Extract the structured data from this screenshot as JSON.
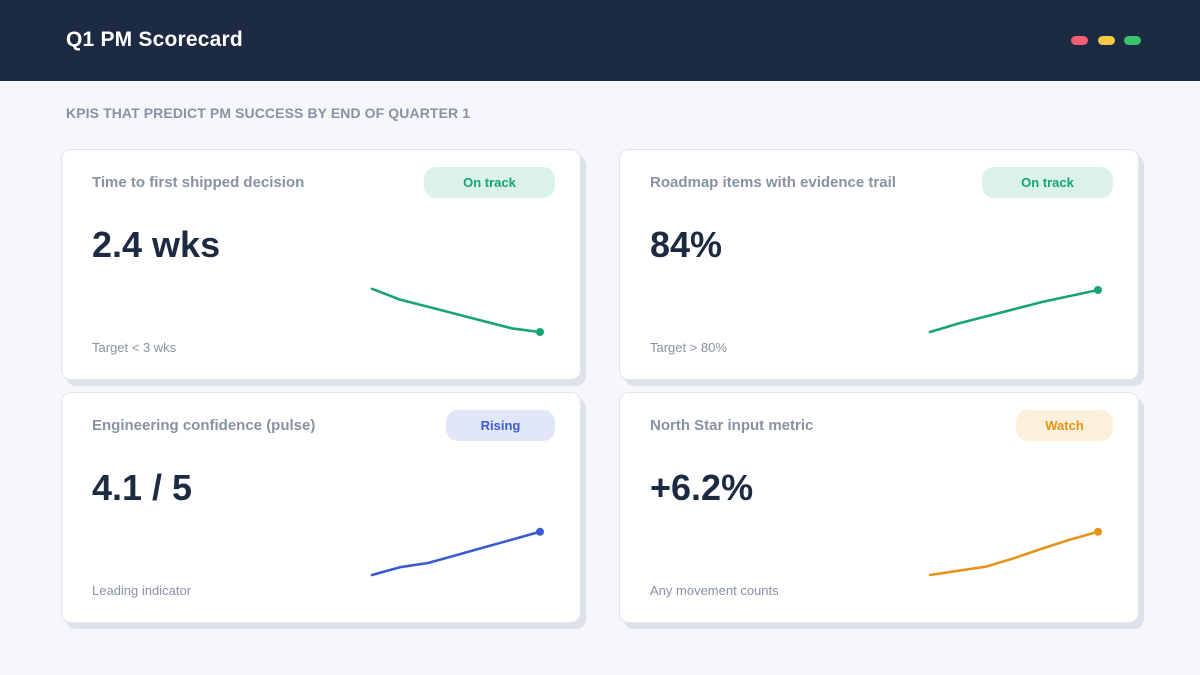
{
  "header": {
    "title": "Q1 PM Scorecard",
    "window_controls": [
      "close-dot",
      "minimize-dot",
      "maximize-dot"
    ]
  },
  "subtitle": "KPIS THAT PREDICT PM SUCCESS BY END OF QUARTER 1",
  "cards": [
    {
      "label": "Time to first shipped decision",
      "value": "2.4 wks",
      "note": "Target < 3 wks",
      "status": {
        "label": "On track",
        "bg": "#dbf2e8",
        "color": "#17a474"
      },
      "spark_color": "#17a474",
      "trend": [
        92,
        74,
        62,
        50,
        38,
        26,
        20
      ]
    },
    {
      "label": "Roadmap items with evidence trail",
      "value": "84%",
      "note": "Target > 80%",
      "status": {
        "label": "On track",
        "bg": "#dbf2e8",
        "color": "#17a474"
      },
      "spark_color": "#17a474",
      "trend": [
        20,
        34,
        46,
        58,
        70,
        80,
        90
      ]
    },
    {
      "label": "Engineering confidence (pulse)",
      "value": "4.1 / 5",
      "note": "Leading indicator",
      "status": {
        "label": "Rising",
        "bg": "#e1e6f9",
        "color": "#3b5bd1"
      },
      "spark_color": "#3b5bd1",
      "trend": [
        20,
        33,
        40,
        53,
        66,
        79,
        92
      ]
    },
    {
      "label": "North Star input metric",
      "value": "+6.2%",
      "note": "Any movement counts",
      "status": {
        "label": "Watch",
        "bg": "#fcefdc",
        "color": "#e59418"
      },
      "spark_color": "#e59418",
      "trend": [
        20,
        27,
        34,
        48,
        64,
        79,
        92
      ]
    }
  ]
}
